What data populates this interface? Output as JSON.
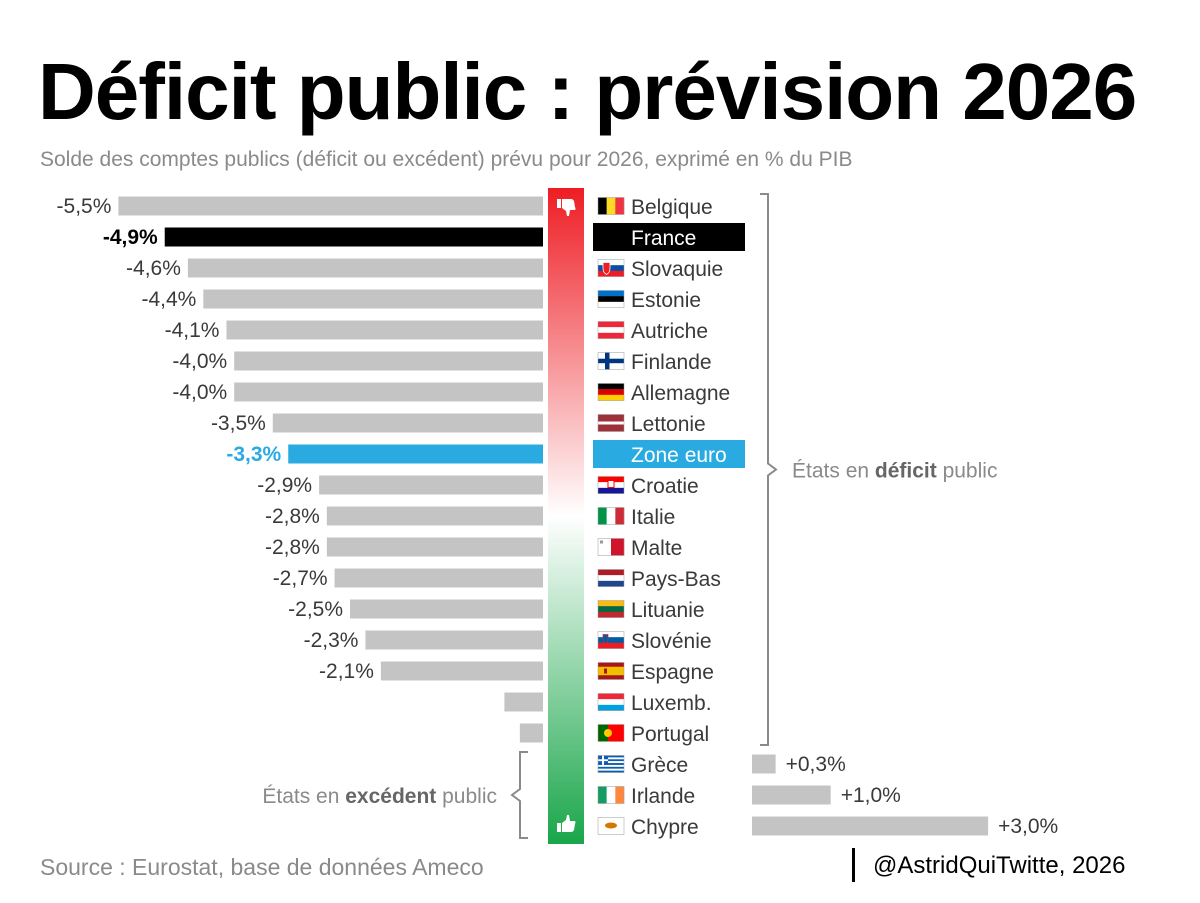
{
  "title": "Déficit public : prévision 2026",
  "subtitle": "Solde des comptes publics (déficit ou excédent) prévu pour 2026, exprimé en % du PIB",
  "source": "Source : Eurostat, base de données Ameco",
  "credit": "@AstridQuiTwitte, 2026",
  "colors": {
    "bar_default": "#c4c4c4",
    "bar_france": "#000000",
    "bar_euro": "#29abe2",
    "label_default": "#3a3a3a",
    "gradient_top": "#ee1d24",
    "gradient_mid": "#ffffff",
    "gradient_bottom": "#1aa64a",
    "annotation": "#8a8a8a"
  },
  "chart_data": {
    "type": "bar",
    "orientation": "horizontal",
    "title": "Déficit public : prévision 2026",
    "subtitle": "Solde des comptes publics (déficit ou excédent) prévu pour 2026, exprimé en % du PIB",
    "unit": "% du PIB",
    "xlim": [
      -5.5,
      3.0
    ],
    "rows": [
      {
        "country": "Belgique",
        "value": -5.5,
        "label": "-5,5%",
        "flag": "belgium-flag"
      },
      {
        "country": "France",
        "value": -4.9,
        "label": "-4,9%",
        "flag": "france-flag",
        "highlight": "france"
      },
      {
        "country": "Slovaquie",
        "value": -4.6,
        "label": "-4,6%",
        "flag": "slovakia-flag"
      },
      {
        "country": "Estonie",
        "value": -4.4,
        "label": "-4,4%",
        "flag": "estonia-flag"
      },
      {
        "country": "Autriche",
        "value": -4.1,
        "label": "-4,1%",
        "flag": "austria-flag"
      },
      {
        "country": "Finlande",
        "value": -4.0,
        "label": "-4,0%",
        "flag": "finland-flag"
      },
      {
        "country": "Allemagne",
        "value": -4.0,
        "label": "-4,0%",
        "flag": "germany-flag"
      },
      {
        "country": "Lettonie",
        "value": -3.5,
        "label": "-3,5%",
        "flag": "latvia-flag"
      },
      {
        "country": "Zone euro",
        "value": -3.3,
        "label": "-3,3%",
        "flag": "eu-flag",
        "highlight": "euro"
      },
      {
        "country": "Croatie",
        "value": -2.9,
        "label": "-2,9%",
        "flag": "croatia-flag"
      },
      {
        "country": "Italie",
        "value": -2.8,
        "label": "-2,8%",
        "flag": "italy-flag"
      },
      {
        "country": "Malte",
        "value": -2.8,
        "label": "-2,8%",
        "flag": "malta-flag"
      },
      {
        "country": "Pays-Bas",
        "value": -2.7,
        "label": "-2,7%",
        "flag": "netherlands-flag"
      },
      {
        "country": "Lituanie",
        "value": -2.5,
        "label": "-2,5%",
        "flag": "lithuania-flag"
      },
      {
        "country": "Slovénie",
        "value": -2.3,
        "label": "-2,3%",
        "flag": "slovenia-flag"
      },
      {
        "country": "Espagne",
        "value": -2.1,
        "label": "-2,1%",
        "flag": "spain-flag"
      },
      {
        "country": "Luxemb.",
        "value": -0.5,
        "label": null,
        "flag": "luxembourg-flag"
      },
      {
        "country": "Portugal",
        "value": -0.3,
        "label": null,
        "flag": "portugal-flag"
      },
      {
        "country": "Grèce",
        "value": 0.3,
        "label": "+0,3%",
        "flag": "greece-flag"
      },
      {
        "country": "Irlande",
        "value": 1.0,
        "label": "+1,0%",
        "flag": "ireland-flag"
      },
      {
        "country": "Chypre",
        "value": 3.0,
        "label": "+3,0%",
        "flag": "cyprus-flag"
      }
    ],
    "annotations": {
      "deficit": {
        "prefix": "États en ",
        "bold": "déficit",
        "suffix": " public"
      },
      "surplus": {
        "prefix": "États en ",
        "bold": "excédent",
        "suffix": " public"
      }
    },
    "icons": {
      "top": "thumbs-down-icon",
      "bottom": "thumbs-up-icon"
    }
  }
}
